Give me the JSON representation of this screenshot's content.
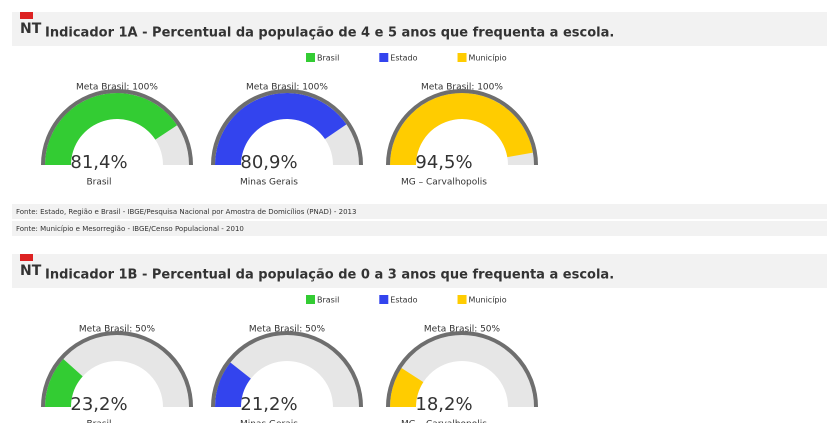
{
  "sections": [
    {
      "icon": "NT",
      "title": "Indicador 1A - Percentual da população de 4 e 5 anos que frequenta a escola.",
      "legend": [
        {
          "name": "Brasil",
          "color": "#33cc33"
        },
        {
          "name": "Estado",
          "color": "#3344ee"
        },
        {
          "name": "Município",
          "color": "#ffcc00"
        }
      ],
      "sources": [
        "Fonte: Estado, Região e Brasil - IBGE/Pesquisa Nacional por Amostra de Domicílios (PNAD) - 2013",
        "Fonte: Município e Mesorregião - IBGE/Censo Populacional - 2010"
      ]
    },
    {
      "icon": "NT",
      "title": "Indicador 1B - Percentual da população de 0 a 3 anos que frequenta a escola.",
      "legend": [
        {
          "name": "Brasil",
          "color": "#33cc33"
        },
        {
          "name": "Estado",
          "color": "#3344ee"
        },
        {
          "name": "Município",
          "color": "#ffcc00"
        }
      ]
    }
  ],
  "chart_data": [
    {
      "type": "gauge",
      "title": "Meta Brasil: 100%",
      "categories": [
        "Brasil"
      ],
      "values": [
        81.4
      ],
      "value_labels": [
        "81,4%"
      ],
      "color": "#33cc33",
      "ylim": [
        0,
        100
      ]
    },
    {
      "type": "gauge",
      "title": "Meta Brasil: 100%",
      "categories": [
        "Minas Gerais"
      ],
      "values": [
        80.9
      ],
      "value_labels": [
        "80,9%"
      ],
      "color": "#3344ee",
      "ylim": [
        0,
        100
      ]
    },
    {
      "type": "gauge",
      "title": "Meta Brasil: 100%",
      "categories": [
        "MG – Carvalhopolis"
      ],
      "values": [
        94.5
      ],
      "value_labels": [
        "94,5%"
      ],
      "color": "#ffcc00",
      "ylim": [
        0,
        100
      ]
    },
    {
      "type": "gauge",
      "title": "Meta Brasil: 50%",
      "categories": [
        "Brasil"
      ],
      "values": [
        23.2
      ],
      "value_labels": [
        "23,2%"
      ],
      "color": "#33cc33",
      "ylim": [
        0,
        100
      ]
    },
    {
      "type": "gauge",
      "title": "Meta Brasil: 50%",
      "categories": [
        "Minas Gerais"
      ],
      "values": [
        21.2
      ],
      "value_labels": [
        "21,2%"
      ],
      "color": "#3344ee",
      "ylim": [
        0,
        100
      ]
    },
    {
      "type": "gauge",
      "title": "Meta Brasil: 50%",
      "categories": [
        "MG – Carvalhopolis"
      ],
      "values": [
        18.2
      ],
      "value_labels": [
        "18,2%"
      ],
      "color": "#ffcc00",
      "ylim": [
        0,
        100
      ]
    }
  ]
}
